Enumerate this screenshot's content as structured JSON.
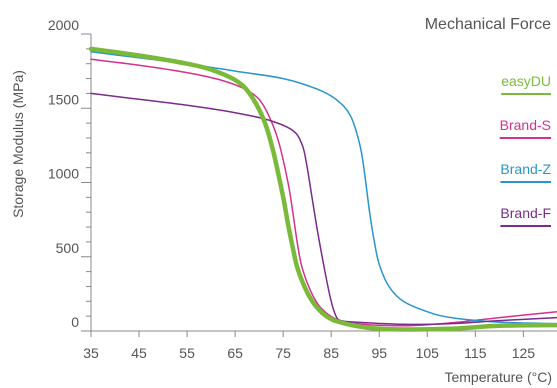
{
  "chart_data": {
    "type": "line",
    "title": "Mechanical Force",
    "xlabel": "Temperature (°C)",
    "ylabel": "Storage Modulus (MPa)",
    "xlim": [
      35,
      132
    ],
    "ylim": [
      0,
      2000
    ],
    "xticks": [
      "35",
      "45",
      "55",
      "65",
      "75",
      "85",
      "95",
      "105",
      "115",
      "125"
    ],
    "yticks": [
      "0",
      "500",
      "1000",
      "1500",
      "2000"
    ],
    "grid": false,
    "legend_position": "right",
    "series": [
      {
        "name": "easyDU",
        "color": "#7bb93a",
        "emphasis": true,
        "points": [
          [
            35,
            1900
          ],
          [
            45,
            1855
          ],
          [
            55,
            1800
          ],
          [
            60,
            1760
          ],
          [
            65,
            1690
          ],
          [
            68,
            1600
          ],
          [
            71,
            1420
          ],
          [
            73,
            1200
          ],
          [
            75,
            900
          ],
          [
            76,
            720
          ],
          [
            77,
            560
          ],
          [
            78,
            420
          ],
          [
            80,
            260
          ],
          [
            82,
            160
          ],
          [
            85,
            80
          ],
          [
            90,
            35
          ],
          [
            95,
            15
          ],
          [
            100,
            10
          ],
          [
            110,
            15
          ],
          [
            120,
            35
          ],
          [
            132,
            40
          ]
        ]
      },
      {
        "name": "Brand-S",
        "color": "#d6318e",
        "emphasis": false,
        "points": [
          [
            35,
            1830
          ],
          [
            45,
            1790
          ],
          [
            55,
            1740
          ],
          [
            62,
            1690
          ],
          [
            67,
            1630
          ],
          [
            70,
            1560
          ],
          [
            72,
            1450
          ],
          [
            74,
            1280
          ],
          [
            76,
            1000
          ],
          [
            77,
            800
          ],
          [
            78,
            580
          ],
          [
            79,
            420
          ],
          [
            81,
            250
          ],
          [
            83,
            150
          ],
          [
            86,
            80
          ],
          [
            90,
            50
          ],
          [
            100,
            35
          ],
          [
            110,
            55
          ],
          [
            120,
            90
          ],
          [
            132,
            130
          ]
        ]
      },
      {
        "name": "Brand-Z",
        "color": "#2a94cf",
        "emphasis": false,
        "points": [
          [
            35,
            1880
          ],
          [
            45,
            1840
          ],
          [
            55,
            1800
          ],
          [
            65,
            1750
          ],
          [
            75,
            1700
          ],
          [
            82,
            1630
          ],
          [
            86,
            1560
          ],
          [
            89,
            1450
          ],
          [
            91,
            1250
          ],
          [
            92,
            1050
          ],
          [
            93,
            800
          ],
          [
            94,
            600
          ],
          [
            95,
            450
          ],
          [
            97,
            300
          ],
          [
            100,
            200
          ],
          [
            105,
            130
          ],
          [
            110,
            90
          ],
          [
            120,
            60
          ],
          [
            132,
            50
          ]
        ]
      },
      {
        "name": "Brand-F",
        "color": "#7a2c8a",
        "emphasis": false,
        "points": [
          [
            35,
            1600
          ],
          [
            45,
            1560
          ],
          [
            55,
            1520
          ],
          [
            65,
            1470
          ],
          [
            72,
            1420
          ],
          [
            77,
            1350
          ],
          [
            79,
            1250
          ],
          [
            80,
            1100
          ],
          [
            81,
            900
          ],
          [
            82,
            700
          ],
          [
            83,
            520
          ],
          [
            84,
            350
          ],
          [
            85,
            200
          ],
          [
            86,
            100
          ],
          [
            87,
            70
          ],
          [
            90,
            60
          ],
          [
            100,
            45
          ],
          [
            110,
            50
          ],
          [
            120,
            70
          ],
          [
            132,
            90
          ]
        ]
      }
    ]
  }
}
